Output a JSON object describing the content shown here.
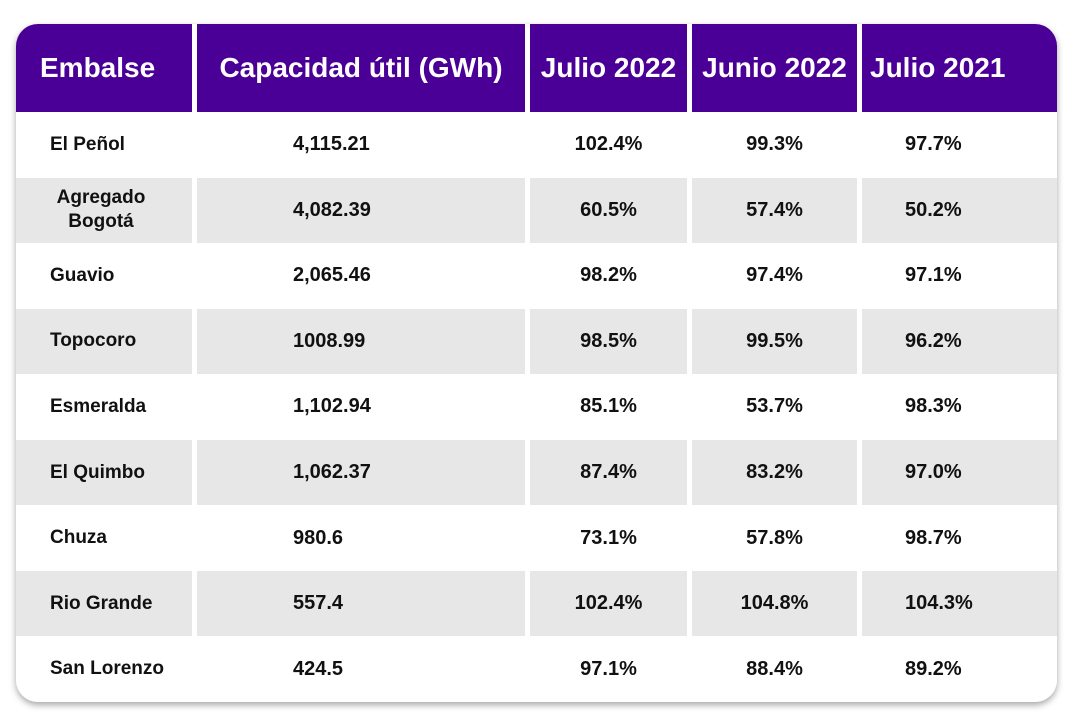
{
  "table": {
    "headers": [
      "Embalse",
      "Capacidad útil (GWh)",
      "Julio 2022",
      "Junio 2022",
      "Julio 2021"
    ],
    "rows": [
      {
        "name": "El Peñol",
        "capacity": "4,115.21",
        "jul2022": "102.4%",
        "jun2022": "99.3%",
        "jul2021": "97.7%"
      },
      {
        "name": "Agregado Bogotá",
        "capacity": "4,082.39",
        "jul2022": "60.5%",
        "jun2022": "57.4%",
        "jul2021": "50.2%"
      },
      {
        "name": "Guavio",
        "capacity": "2,065.46",
        "jul2022": "98.2%",
        "jun2022": "97.4%",
        "jul2021": "97.1%"
      },
      {
        "name": "Topocoro",
        "capacity": "1008.99",
        "jul2022": "98.5%",
        "jun2022": "99.5%",
        "jul2021": "96.2%"
      },
      {
        "name": "Esmeralda",
        "capacity": "1,102.94",
        "jul2022": "85.1%",
        "jun2022": "53.7%",
        "jul2021": "98.3%"
      },
      {
        "name": "El Quimbo",
        "capacity": "1,062.37",
        "jul2022": "87.4%",
        "jun2022": "83.2%",
        "jul2021": "97.0%"
      },
      {
        "name": "Chuza",
        "capacity": "980.6",
        "jul2022": "73.1%",
        "jun2022": "57.8%",
        "jul2021": "98.7%"
      },
      {
        "name": "Rio Grande",
        "capacity": "557.4",
        "jul2022": "102.4%",
        "jun2022": "104.8%",
        "jul2021": "104.3%"
      },
      {
        "name": "San Lorenzo",
        "capacity": "424.5",
        "jul2022": "97.1%",
        "jun2022": "88.4%",
        "jul2021": "89.2%"
      }
    ]
  },
  "colors": {
    "header_bg": "#4a0096",
    "header_text": "#ffffff",
    "stripe": "#e7e7e7"
  }
}
